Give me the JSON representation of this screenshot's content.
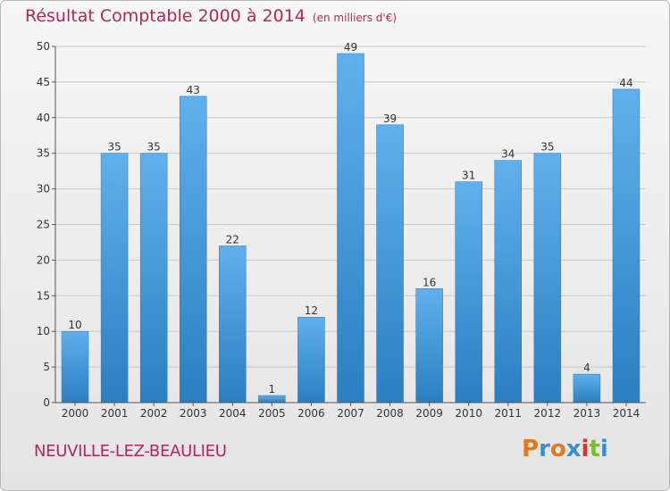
{
  "title": "Résultat Comptable 2000 à 2014",
  "unit_note": "(en milliers d'€)",
  "commune": "NEUVILLE-LEZ-BEAULIEU",
  "logo": {
    "text": "Proxiti",
    "letter_colors": [
      "#e07a1c",
      "#3b8fd1",
      "#e07a1c",
      "#3b8fd1",
      "#e03030",
      "#7abf2a",
      "#3b8fd1"
    ]
  },
  "colors": {
    "title": "#b0265e",
    "bar_light": "#5fb0ec",
    "bar_dark": "#2b7fc0",
    "grid": "#c8c8c8",
    "axis": "#555555"
  },
  "chart_data": {
    "type": "bar",
    "categories": [
      "2000",
      "2001",
      "2002",
      "2003",
      "2004",
      "2005",
      "2006",
      "2007",
      "2008",
      "2009",
      "2010",
      "2011",
      "2012",
      "2013",
      "2014"
    ],
    "values": [
      10,
      35,
      35,
      43,
      22,
      1,
      12,
      49,
      39,
      16,
      31,
      34,
      35,
      4,
      44
    ],
    "ylim": [
      0,
      50
    ],
    "yticks": [
      0,
      5,
      10,
      15,
      20,
      25,
      30,
      35,
      40,
      45,
      50
    ],
    "grid": true,
    "data_labels": true
  }
}
